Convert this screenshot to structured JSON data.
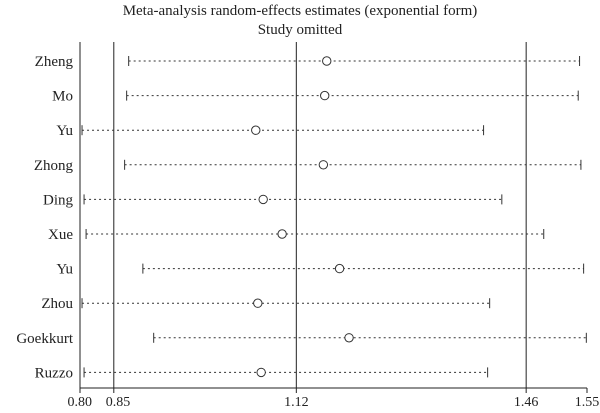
{
  "chart_data": {
    "type": "scatter",
    "title": "Meta-analysis random-effects estimates (exponential form)",
    "subtitle": "Study omitted",
    "xlabel": "",
    "ylabel": "",
    "xlim": [
      0.8,
      1.55
    ],
    "xticks": [
      "0.80",
      "0.85",
      "1.12",
      "1.46",
      "1.55"
    ],
    "reference_lines": [
      0.85,
      1.12,
      1.46
    ],
    "grid": false,
    "legend": "none",
    "studies": [
      {
        "name": "Zheng",
        "lower": 0.872,
        "estimate": 1.165,
        "upper": 1.539
      },
      {
        "name": "Mo",
        "lower": 0.869,
        "estimate": 1.162,
        "upper": 1.537
      },
      {
        "name": "Yu",
        "lower": 0.803,
        "estimate": 1.06,
        "upper": 1.397
      },
      {
        "name": "Zhong",
        "lower": 0.866,
        "estimate": 1.16,
        "upper": 1.541
      },
      {
        "name": "Ding",
        "lower": 0.806,
        "estimate": 1.071,
        "upper": 1.424
      },
      {
        "name": "Xue",
        "lower": 0.809,
        "estimate": 1.099,
        "upper": 1.486
      },
      {
        "name": "Yu",
        "lower": 0.893,
        "estimate": 1.184,
        "upper": 1.545
      },
      {
        "name": "Zhou",
        "lower": 0.803,
        "estimate": 1.063,
        "upper": 1.406
      },
      {
        "name": "Goekkurt",
        "lower": 0.909,
        "estimate": 1.198,
        "upper": 1.549
      },
      {
        "name": "Ruzzo",
        "lower": 0.806,
        "estimate": 1.068,
        "upper": 1.403
      }
    ]
  }
}
